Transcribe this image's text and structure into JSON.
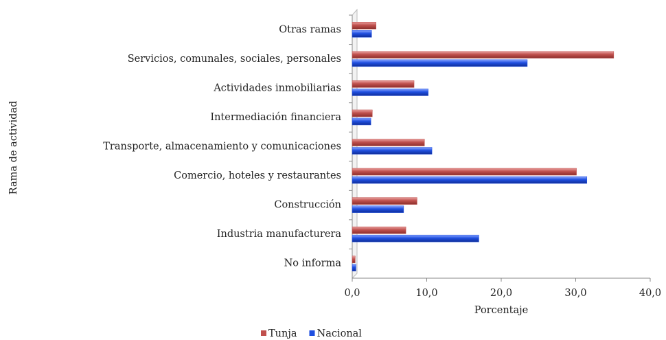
{
  "chart_data": {
    "type": "bar",
    "orientation": "horizontal",
    "y_label": "Rama de actividad",
    "x_label": "Porcentaje",
    "categories": [
      "Otras ramas",
      "Servicios, comunales, sociales, personales",
      "Actividades inmobiliarias",
      "Intermediación financiera",
      "Transporte, almacenamiento y comunicaciones",
      "Comercio, hoteles y restaurantes",
      "Construcción",
      "Industria manufacturera",
      "No informa"
    ],
    "series": [
      {
        "name": "Tunja",
        "color": "#c0504d",
        "values": [
          3.2,
          35.1,
          8.3,
          2.7,
          9.7,
          30.1,
          8.7,
          7.2,
          0.4
        ]
      },
      {
        "name": "Nacional",
        "color": "#1f4fe0",
        "values": [
          2.6,
          23.5,
          10.2,
          2.5,
          10.7,
          31.5,
          6.9,
          17.0,
          0.5
        ]
      }
    ],
    "xlim": [
      0,
      40
    ],
    "xticks": [
      {
        "value": 0,
        "label": "0,0"
      },
      {
        "value": 10,
        "label": "10,0"
      },
      {
        "value": 20,
        "label": "20,0"
      },
      {
        "value": 30,
        "label": "30,0"
      },
      {
        "value": 40,
        "label": "40,0"
      }
    ],
    "legend": "bottom"
  }
}
